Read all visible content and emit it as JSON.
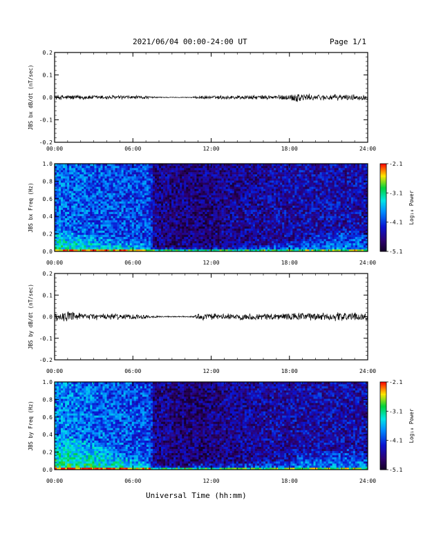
{
  "header": {
    "title": "2021/06/04  00:00-24:00 UT",
    "page": "Page 1/1"
  },
  "footer": {
    "xlabel": "Universal Time (hh:mm)"
  },
  "colors": {
    "spectrogram_low": "#1a0066",
    "spectrogram_mid": "#00ccff",
    "spectrogram_high": "#ff0000",
    "trace": "#000000"
  },
  "chart_data": [
    {
      "type": "line",
      "ylabel": "JBS bx dB/dt (nT/sec)",
      "x_tick_labels": [
        "00:00",
        "06:00",
        "12:00",
        "18:00",
        "24:00"
      ],
      "xlim_hours": [
        0,
        24
      ],
      "ylim": [
        -0.2,
        0.2
      ],
      "y_tick_labels": [
        "0.2",
        "0.1",
        "0.0",
        "-0.1",
        "-0.2"
      ],
      "envelope": {
        "hours": [
          0,
          1,
          2,
          3,
          4,
          5,
          6,
          7,
          7.5,
          8,
          9,
          10,
          10.7,
          11,
          12,
          13,
          14,
          15,
          16,
          17,
          18,
          18.7,
          19,
          20,
          21,
          22,
          23,
          24
        ],
        "amplitude": [
          0.012,
          0.013,
          0.012,
          0.011,
          0.011,
          0.01,
          0.009,
          0.008,
          0.004,
          0.003,
          0.002,
          0.002,
          0.003,
          0.01,
          0.008,
          0.01,
          0.011,
          0.011,
          0.011,
          0.012,
          0.014,
          0.03,
          0.02,
          0.014,
          0.015,
          0.015,
          0.014,
          0.013
        ]
      }
    },
    {
      "type": "heatmap",
      "ylabel": "JBS bx Freq (Hz)",
      "x_tick_labels": [
        "00:00",
        "06:00",
        "12:00",
        "18:00",
        "24:00"
      ],
      "xlim_hours": [
        0,
        24
      ],
      "ylim": [
        0.0,
        1.0
      ],
      "y_tick_labels": [
        "1.0",
        "0.8",
        "0.6",
        "0.4",
        "0.2",
        "0.0"
      ],
      "colorbar": {
        "label": "Log₁₀ Power",
        "ticks": [
          "-2.1",
          "-3.1",
          "-4.1",
          "-5.1"
        ],
        "range": [
          -5.1,
          -2.1
        ]
      },
      "background_power": {
        "hours": [
          0,
          2,
          4,
          6,
          7.4,
          7.5,
          9,
          11,
          13,
          15,
          17,
          19,
          21,
          24
        ],
        "level": [
          -3.9,
          -3.95,
          -4.0,
          -4.05,
          -4.05,
          -4.6,
          -4.65,
          -4.7,
          -4.6,
          -4.55,
          -4.5,
          -4.45,
          -4.45,
          -4.45
        ]
      },
      "low_freq_enhancement": {
        "hours": [
          0,
          2,
          4,
          6,
          8,
          10,
          11,
          12,
          14,
          16,
          18,
          19,
          20,
          21,
          22,
          23,
          24
        ],
        "top_hz": [
          0.25,
          0.2,
          0.15,
          0.12,
          0.04,
          0.04,
          0.08,
          0.05,
          0.06,
          0.08,
          0.1,
          0.15,
          0.18,
          0.2,
          0.25,
          0.22,
          0.2
        ]
      }
    },
    {
      "type": "line",
      "ylabel": "JBS by dB/dt (nT/sec)",
      "x_tick_labels": [
        "00:00",
        "06:00",
        "12:00",
        "18:00",
        "24:00"
      ],
      "xlim_hours": [
        0,
        24
      ],
      "ylim": [
        -0.2,
        0.2
      ],
      "y_tick_labels": [
        "0.2",
        "0.1",
        "0.0",
        "-0.1",
        "-0.2"
      ],
      "envelope": {
        "hours": [
          0,
          1,
          2,
          3,
          4,
          5,
          6,
          7,
          7.5,
          8,
          9,
          10,
          10.7,
          11,
          12,
          13,
          14,
          15,
          16,
          17,
          18,
          19,
          20,
          21,
          22,
          23,
          24
        ],
        "amplitude": [
          0.02,
          0.025,
          0.018,
          0.017,
          0.016,
          0.015,
          0.014,
          0.012,
          0.006,
          0.004,
          0.003,
          0.003,
          0.004,
          0.018,
          0.016,
          0.015,
          0.016,
          0.016,
          0.017,
          0.018,
          0.02,
          0.02,
          0.02,
          0.022,
          0.022,
          0.02,
          0.018
        ]
      }
    },
    {
      "type": "heatmap",
      "ylabel": "JBS by Freq (Hz)",
      "x_tick_labels": [
        "00:00",
        "06:00",
        "12:00",
        "18:00",
        "24:00"
      ],
      "xlim_hours": [
        0,
        24
      ],
      "ylim": [
        0.0,
        1.0
      ],
      "y_tick_labels": [
        "1.0",
        "0.8",
        "0.6",
        "0.4",
        "0.2",
        "0.0"
      ],
      "colorbar": {
        "label": "Log₁₀ Power",
        "ticks": [
          "-2.1",
          "-3.1",
          "-4.1",
          "-5.1"
        ],
        "range": [
          -5.1,
          -2.1
        ]
      },
      "background_power": {
        "hours": [
          0,
          2,
          4,
          6,
          7.4,
          7.5,
          9,
          11,
          13,
          15,
          17,
          19,
          21,
          24
        ],
        "level": [
          -3.8,
          -3.85,
          -3.95,
          -4.0,
          -4.0,
          -4.6,
          -4.65,
          -4.7,
          -4.6,
          -4.55,
          -4.5,
          -4.45,
          -4.45,
          -4.45
        ]
      },
      "low_freq_enhancement": {
        "hours": [
          0,
          1,
          2,
          3,
          4,
          6,
          8,
          10,
          11,
          12,
          14,
          16,
          18,
          19,
          20,
          21,
          22,
          23,
          24
        ],
        "top_hz": [
          0.35,
          0.4,
          0.35,
          0.3,
          0.25,
          0.15,
          0.05,
          0.05,
          0.1,
          0.06,
          0.07,
          0.09,
          0.1,
          0.2,
          0.18,
          0.22,
          0.25,
          0.22,
          0.2
        ]
      }
    }
  ]
}
